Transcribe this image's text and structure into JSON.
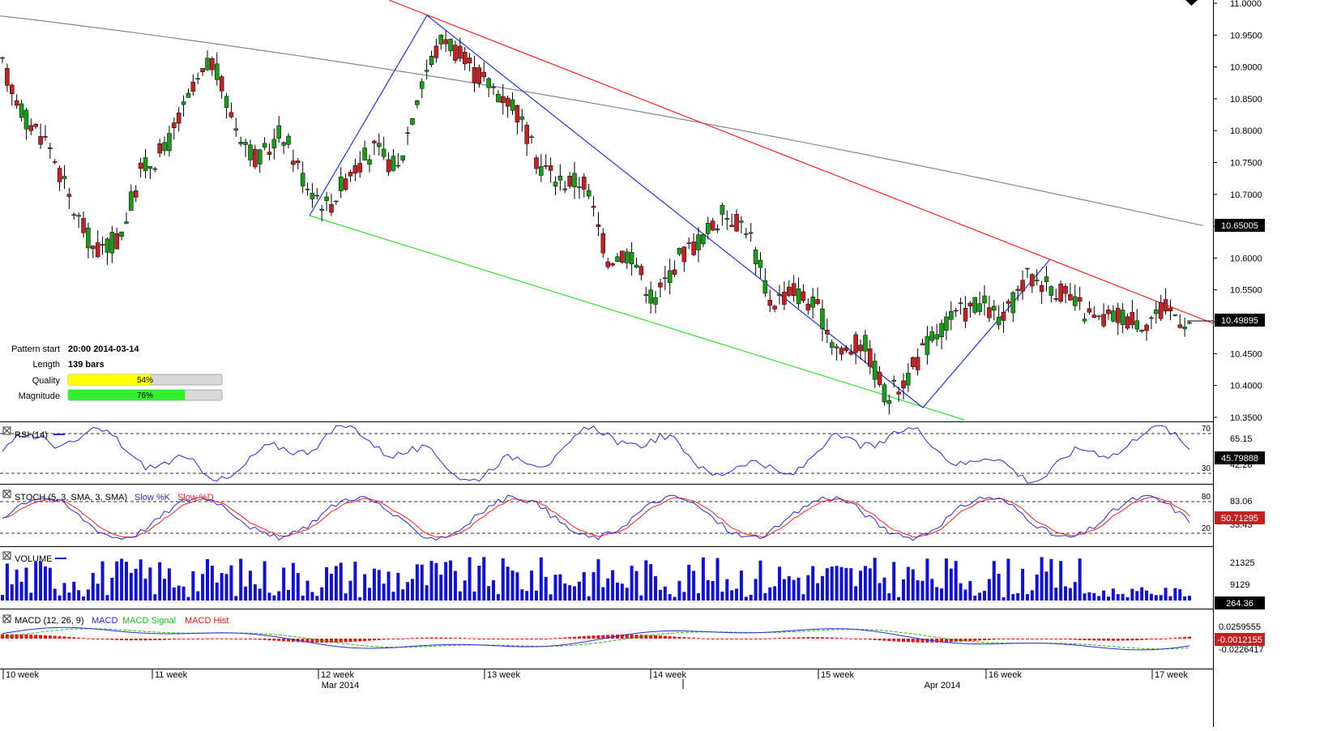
{
  "main_price_axis": {
    "ticks": [
      "11.0000",
      "10.9500",
      "10.9000",
      "10.8500",
      "10.8000",
      "10.7500",
      "10.7000",
      "10.6500",
      "10.6000",
      "10.5500",
      "10.5000",
      "10.4500",
      "10.4000",
      "10.3500"
    ],
    "ma_label": "10.65005",
    "last_label": "10.49895"
  },
  "pattern_info": {
    "start_label": "Pattern start",
    "start_value": "20:00 2014-03-14",
    "length_label": "Length",
    "length_value": "139 bars",
    "quality_label": "Quality",
    "quality_value": "54%",
    "quality_fraction": 0.54,
    "magnitude_label": "Magnitude",
    "magnitude_value": "76%",
    "magnitude_fraction": 0.76
  },
  "rsi": {
    "title": "RSI (14)",
    "level_top": "70",
    "level_bottom": "30",
    "axis_label": "65.15",
    "hidden_label": "42.28",
    "value_label": "45.79888"
  },
  "stoch": {
    "title": "STOCH (5, 3, SMA, 3, SMA)",
    "k_label": "Slow %K",
    "d_label": "Slow %D",
    "level_top": "80",
    "level_bottom": "20",
    "axis_label": "83.06",
    "hidden_label": "33.43",
    "value_label": "50.71295"
  },
  "volume": {
    "title": "VOLUME",
    "axis_top": "21325",
    "axis_mid": "9129",
    "value_label": "264.36"
  },
  "macd": {
    "title": "MACD (12, 26, 9)",
    "macd_label": "MACD",
    "signal_label": "MACD Signal",
    "hist_label": "MACD Hist",
    "axis_top": "0.0259555",
    "value_label": "-0.0012155",
    "axis_bottom": "-0.0226417"
  },
  "time_axis": {
    "week_labels": [
      "10 week",
      "11 week",
      "12 week",
      "13 week",
      "14 week",
      "15 week",
      "16 week",
      "17 week"
    ],
    "month_labels": [
      "Mar 2014",
      "Apr 2014"
    ]
  },
  "colors": {
    "bull": "#1a9b1a",
    "bear": "#c42222",
    "ma": "#888888",
    "upper_line": "#ff2020",
    "lower_line": "#33dd33",
    "zigzag": "#2232ee",
    "rsi": "#2a2ad8",
    "stoch_k": "#2a2ad8",
    "stoch_d": "#ff2020",
    "volume": "#1010d8",
    "macd": "#2a2ad8",
    "signal": "#22bb22",
    "hist": "#ee1010",
    "quality_bar": "#ffff00",
    "magnitude_bar": "#33ee33"
  },
  "chart_data": {
    "type": "candlestick",
    "instrument_timeframe": "4-hour candles, 10 week to 17 week 2014",
    "y_range": [
      10.35,
      11.0
    ],
    "key_points": [
      {
        "label": "pattern start low",
        "value": 10.665
      },
      {
        "label": "high",
        "value": 10.98
      },
      {
        "label": "low",
        "value": 10.36
      },
      {
        "label": "right peak",
        "value": 10.595
      },
      {
        "label": "last close",
        "value": 10.49895
      }
    ],
    "moving_average_last": 10.65005,
    "pattern": "falling wedge (red resistance, green support, blue zigzag)",
    "candles_sampled": [
      {
        "o": 10.86,
        "h": 10.94,
        "l": 10.84,
        "c": 10.9
      },
      {
        "o": 10.88,
        "h": 10.91,
        "l": 10.8,
        "c": 10.82
      },
      {
        "o": 10.82,
        "h": 10.86,
        "l": 10.76,
        "c": 10.78
      },
      {
        "o": 10.74,
        "h": 10.77,
        "l": 10.66,
        "c": 10.68
      },
      {
        "o": 10.67,
        "h": 10.71,
        "l": 10.6,
        "c": 10.61
      },
      {
        "o": 10.61,
        "h": 10.64,
        "l": 10.59,
        "c": 10.63
      },
      {
        "o": 10.65,
        "h": 10.76,
        "l": 10.64,
        "c": 10.74
      },
      {
        "o": 10.74,
        "h": 10.79,
        "l": 10.72,
        "c": 10.77
      },
      {
        "o": 10.78,
        "h": 10.86,
        "l": 10.74,
        "c": 10.85
      },
      {
        "o": 10.86,
        "h": 10.97,
        "l": 10.84,
        "c": 10.91
      },
      {
        "o": 10.88,
        "h": 10.9,
        "l": 10.8,
        "c": 10.81
      },
      {
        "o": 10.79,
        "h": 10.83,
        "l": 10.7,
        "c": 10.75
      },
      {
        "o": 10.77,
        "h": 10.83,
        "l": 10.74,
        "c": 10.8
      },
      {
        "o": 10.78,
        "h": 10.81,
        "l": 10.7,
        "c": 10.72
      },
      {
        "o": 10.7,
        "h": 10.72,
        "l": 10.66,
        "c": 10.68
      },
      {
        "o": 10.69,
        "h": 10.76,
        "l": 10.67,
        "c": 10.74
      },
      {
        "o": 10.74,
        "h": 10.79,
        "l": 10.7,
        "c": 10.77
      },
      {
        "o": 10.76,
        "h": 10.78,
        "l": 10.71,
        "c": 10.74
      },
      {
        "o": 10.76,
        "h": 10.9,
        "l": 10.75,
        "c": 10.88
      },
      {
        "o": 10.9,
        "h": 10.98,
        "l": 10.86,
        "c": 10.95
      },
      {
        "o": 10.94,
        "h": 10.96,
        "l": 10.86,
        "c": 10.9
      },
      {
        "o": 10.91,
        "h": 10.94,
        "l": 10.84,
        "c": 10.87
      },
      {
        "o": 10.87,
        "h": 10.9,
        "l": 10.82,
        "c": 10.84
      },
      {
        "o": 10.84,
        "h": 10.86,
        "l": 10.72,
        "c": 10.75
      },
      {
        "o": 10.76,
        "h": 10.78,
        "l": 10.7,
        "c": 10.72
      },
      {
        "o": 10.71,
        "h": 10.74,
        "l": 10.67,
        "c": 10.72
      },
      {
        "o": 10.7,
        "h": 10.72,
        "l": 10.57,
        "c": 10.6
      },
      {
        "o": 10.59,
        "h": 10.63,
        "l": 10.57,
        "c": 10.61
      },
      {
        "o": 10.62,
        "h": 10.63,
        "l": 10.51,
        "c": 10.53
      },
      {
        "o": 10.56,
        "h": 10.62,
        "l": 10.55,
        "c": 10.6
      },
      {
        "o": 10.6,
        "h": 10.65,
        "l": 10.58,
        "c": 10.63
      },
      {
        "o": 10.64,
        "h": 10.69,
        "l": 10.62,
        "c": 10.67
      },
      {
        "o": 10.66,
        "h": 10.68,
        "l": 10.62,
        "c": 10.65
      },
      {
        "o": 10.63,
        "h": 10.65,
        "l": 10.5,
        "c": 10.53
      },
      {
        "o": 10.56,
        "h": 10.59,
        "l": 10.54,
        "c": 10.55
      },
      {
        "o": 10.55,
        "h": 10.56,
        "l": 10.49,
        "c": 10.52
      },
      {
        "o": 10.5,
        "h": 10.51,
        "l": 10.42,
        "c": 10.45
      },
      {
        "o": 10.46,
        "h": 10.49,
        "l": 10.43,
        "c": 10.47
      },
      {
        "o": 10.47,
        "h": 10.48,
        "l": 10.36,
        "c": 10.38
      },
      {
        "o": 10.39,
        "h": 10.43,
        "l": 10.37,
        "c": 10.42
      },
      {
        "o": 10.42,
        "h": 10.5,
        "l": 10.41,
        "c": 10.48
      },
      {
        "o": 10.48,
        "h": 10.53,
        "l": 10.44,
        "c": 10.51
      },
      {
        "o": 10.51,
        "h": 10.57,
        "l": 10.5,
        "c": 10.53
      },
      {
        "o": 10.52,
        "h": 10.54,
        "l": 10.48,
        "c": 10.5
      },
      {
        "o": 10.51,
        "h": 10.59,
        "l": 10.49,
        "c": 10.57
      },
      {
        "o": 10.57,
        "h": 10.6,
        "l": 10.55,
        "c": 10.56
      },
      {
        "o": 10.56,
        "h": 10.58,
        "l": 10.51,
        "c": 10.53
      },
      {
        "o": 10.52,
        "h": 10.54,
        "l": 10.47,
        "c": 10.5
      },
      {
        "o": 10.5,
        "h": 10.53,
        "l": 10.48,
        "c": 10.51
      },
      {
        "o": 10.51,
        "h": 10.52,
        "l": 10.49,
        "c": 10.5
      },
      {
        "o": 10.5,
        "h": 10.53,
        "l": 10.49,
        "c": 10.52
      },
      {
        "o": 10.51,
        "h": 10.53,
        "l": 10.49,
        "c": 10.5
      }
    ]
  }
}
